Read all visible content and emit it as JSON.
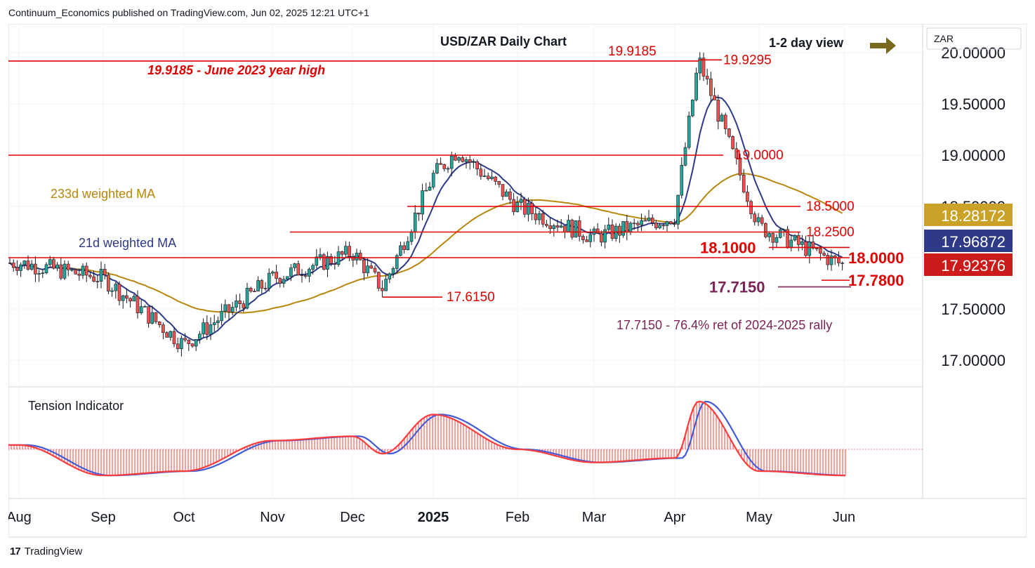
{
  "header": {
    "publisher_line": "Continuum_Economics published on TradingView.com, Jun 02, 2025 12:21 UTC+1"
  },
  "footer": {
    "brand": "TradingView",
    "logo_glyph": "17"
  },
  "chart_data": {
    "type": "candlestick",
    "title": "USD/ZAR Daily Chart",
    "view_label": "1-2 day view",
    "view_arrow": "right",
    "currency": "ZAR",
    "price_axis_labels": [
      "20.00000",
      "19.50000",
      "19.00000",
      "18.50000",
      "17.50000",
      "17.00000"
    ],
    "ylim": [
      16.75,
      20.05
    ],
    "x_labels": [
      "Aug",
      "Sep",
      "Oct",
      "Nov",
      "Dec",
      "2025",
      "Feb",
      "Mar",
      "Apr",
      "May",
      "Jun"
    ],
    "price_badges": [
      {
        "value": "18.28172",
        "color": "#c9a227",
        "text_color": "#ffffff"
      },
      {
        "value": "17.96872",
        "color": "#2e3a87",
        "text_color": "#ffffff"
      },
      {
        "value": "17.92376",
        "color": "#cc1b1b",
        "text_color": "#ffffff"
      }
    ],
    "levels": [
      {
        "price": 19.9185,
        "label": "19.9185",
        "note": "19.9185 - June 2023 year high"
      },
      {
        "price": 19.9295,
        "label": "19.9295"
      },
      {
        "price": 19.0,
        "label": "19.0000"
      },
      {
        "price": 18.5,
        "label": "18.5000"
      },
      {
        "price": 18.25,
        "label": "18.2500"
      },
      {
        "price": 18.1,
        "label": "18.1000"
      },
      {
        "price": 18.0,
        "label": "18.0000"
      },
      {
        "price": 17.78,
        "label": "17.7800"
      },
      {
        "price": 17.715,
        "label": "17.7150",
        "note": "17.7150 - 76.4% ret of 2024-2025 rally"
      },
      {
        "price": 17.615,
        "label": "17.6150"
      }
    ],
    "ma_labels": {
      "ma233": "233d weighted MA",
      "ma21": "21d weighted MA"
    },
    "colors": {
      "up": "#26a69a",
      "down": "#ef5350",
      "ma233": "#b8860b",
      "ma21": "#2e3a87",
      "level": "#e00000",
      "note": "#7b2257",
      "tension_fast": "#ff3b3b",
      "tension_slow": "#3f5bd9"
    },
    "series": [
      {
        "name": "close",
        "approx_path": [
          [
            "Aug",
            17.95
          ],
          [
            "Sep",
            17.8
          ],
          [
            "Oct",
            17.15
          ],
          [
            "Nov",
            17.8
          ],
          [
            "Dec",
            18.05
          ],
          [
            "Dec-mid",
            17.7
          ],
          [
            "2025",
            18.8
          ],
          [
            "Jan-mid",
            19.05
          ],
          [
            "Feb",
            18.5
          ],
          [
            "Mar",
            18.2
          ],
          [
            "Apr",
            18.4
          ],
          [
            "Apr-peak",
            19.9295
          ],
          [
            "May",
            18.3
          ],
          [
            "Jun",
            17.92376
          ]
        ]
      }
    ],
    "tension_indicator": {
      "title": "Tension Indicator",
      "approx_path": [
        [
          "Aug",
          0.1
        ],
        [
          "Sep",
          -0.6
        ],
        [
          "Oct",
          -0.5
        ],
        [
          "Nov",
          0.2
        ],
        [
          "Dec",
          0.3
        ],
        [
          "Dec-mid",
          -0.1
        ],
        [
          "2025",
          0.8
        ],
        [
          "Feb",
          0.0
        ],
        [
          "Mar",
          -0.3
        ],
        [
          "Apr",
          -0.2
        ],
        [
          "Apr-peak",
          1.1
        ],
        [
          "May",
          -0.5
        ],
        [
          "Jun",
          -0.6
        ]
      ]
    }
  }
}
